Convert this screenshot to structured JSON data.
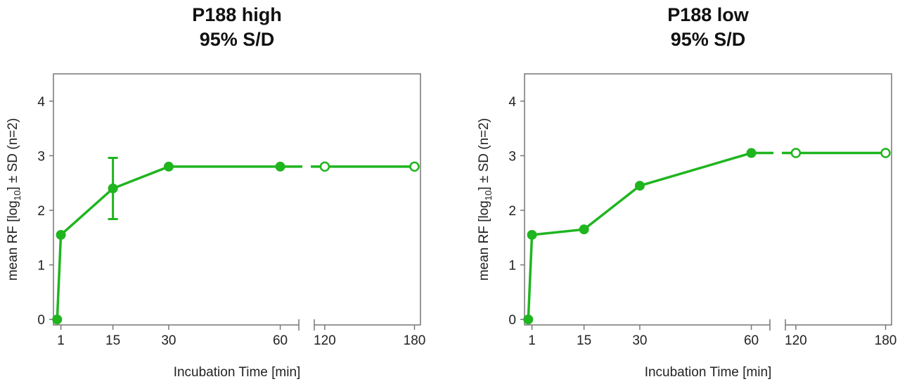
{
  "chart_data": [
    {
      "type": "line",
      "title": [
        "P188 high",
        "95% S/D"
      ],
      "xlabel": "Incubation Time [min]",
      "ylabel": [
        "mean RF [log",
        "10",
        "] ± SD (n=2)"
      ],
      "xlim_segments": [
        [
          -1,
          65
        ],
        [
          113,
          184
        ]
      ],
      "xticks": [
        1,
        15,
        30,
        60,
        120,
        180
      ],
      "ylim": [
        -0.1,
        4.5
      ],
      "yticks": [
        0,
        1,
        2,
        3,
        4
      ],
      "series": [
        {
          "color": "#1fb51f",
          "x": [
            0,
            1,
            15,
            30,
            60,
            120,
            180
          ],
          "values": [
            0,
            1.55,
            2.4,
            2.8,
            2.8,
            2.8,
            2.8
          ],
          "errors": [
            null,
            null,
            0.56,
            null,
            null,
            null,
            null
          ],
          "open_markers": [
            false,
            false,
            false,
            false,
            false,
            true,
            true
          ]
        }
      ]
    },
    {
      "type": "line",
      "title": [
        "P188 low",
        "95% S/D"
      ],
      "xlabel": "Incubation Time [min]",
      "ylabel": [
        "mean RF [log",
        "10",
        "] ± SD (n=2)"
      ],
      "xlim_segments": [
        [
          -1,
          65
        ],
        [
          113,
          184
        ]
      ],
      "xticks": [
        1,
        15,
        30,
        60,
        120,
        180
      ],
      "ylim": [
        -0.1,
        4.5
      ],
      "yticks": [
        0,
        1,
        2,
        3,
        4
      ],
      "series": [
        {
          "color": "#1fb51f",
          "x": [
            0,
            1,
            15,
            30,
            60,
            120,
            180
          ],
          "values": [
            0,
            1.55,
            1.65,
            2.45,
            3.05,
            3.05,
            3.05
          ],
          "errors": [
            null,
            null,
            null,
            null,
            null,
            null,
            null
          ],
          "open_markers": [
            false,
            false,
            false,
            false,
            false,
            true,
            true
          ]
        }
      ]
    }
  ]
}
